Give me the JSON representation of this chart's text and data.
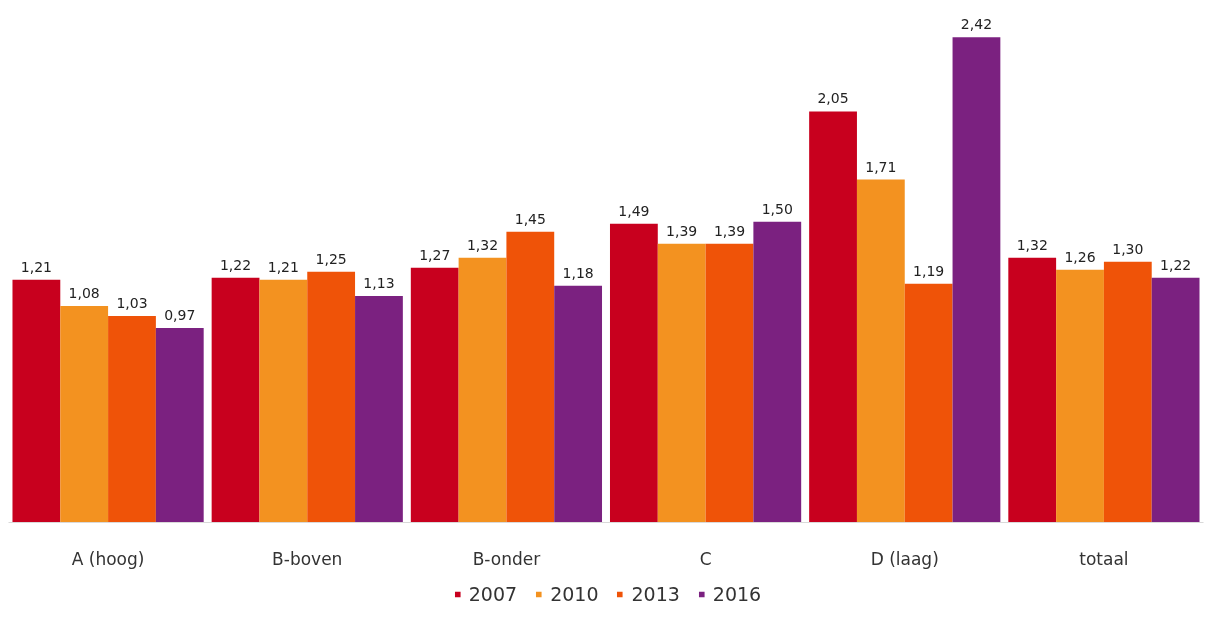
{
  "chart_data": {
    "type": "bar",
    "categories": [
      "A (hoog)",
      "B-boven",
      "B-onder",
      "C",
      "D (laag)",
      "totaal"
    ],
    "series": [
      {
        "name": "2007",
        "color": "#c8001e",
        "values": [
          1.21,
          1.22,
          1.27,
          1.49,
          2.05,
          1.32
        ],
        "value_labels": [
          "1,21",
          "1,22",
          "1,27",
          "1,49",
          "2,05",
          "1,32"
        ]
      },
      {
        "name": "2010",
        "color": "#f39220",
        "values": [
          1.08,
          1.21,
          1.32,
          1.39,
          1.71,
          1.26
        ],
        "value_labels": [
          "1,08",
          "1,21",
          "1,32",
          "1,39",
          "1,71",
          "1,26"
        ]
      },
      {
        "name": "2013",
        "color": "#ef5308",
        "values": [
          1.03,
          1.25,
          1.45,
          1.39,
          1.19,
          1.3
        ],
        "value_labels": [
          "1,03",
          "1,25",
          "1,45",
          "1,39",
          "1,19",
          "1,30"
        ]
      },
      {
        "name": "2016",
        "color": "#7b2180",
        "values": [
          0.97,
          1.13,
          1.18,
          1.5,
          2.42,
          1.22
        ],
        "value_labels": [
          "0,97",
          "1,13",
          "1,18",
          "1,50",
          "2,42",
          "1,22"
        ]
      }
    ],
    "grid": false,
    "legend": "bottom",
    "tick_labels": "x"
  }
}
